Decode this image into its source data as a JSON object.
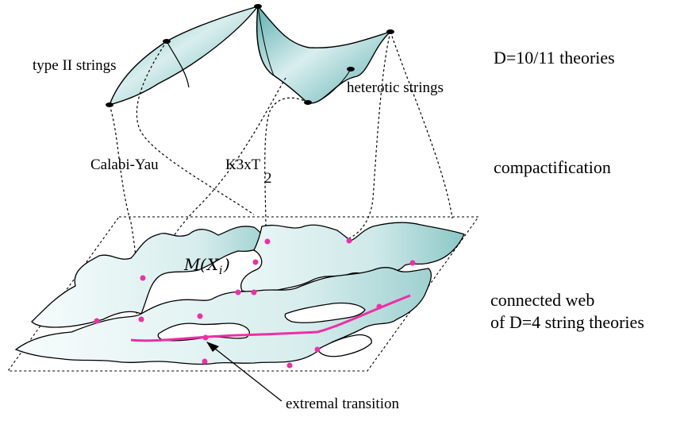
{
  "labels": {
    "type_ii": "type II strings",
    "heterotic": "heterotic strings",
    "calabi_yau": "Calabi-Yau",
    "k3_base": "K3xT",
    "k3_sub": "2",
    "moduli_main": "M",
    "moduli_paren_open": "(",
    "moduli_var": "X",
    "moduli_sub": "i",
    "moduli_paren_close": ")",
    "transition": "extremal transition"
  },
  "side_labels": {
    "d10": "D=10/11 theories",
    "compact": "compactification",
    "web_line1": "connected web",
    "web_line2": "of D=4 string theories"
  },
  "colors": {
    "surface_light": "#f4fbfb",
    "surface_dark": "#5fb0b0",
    "highlight": "#ee2fa6",
    "ink": "#000000"
  }
}
